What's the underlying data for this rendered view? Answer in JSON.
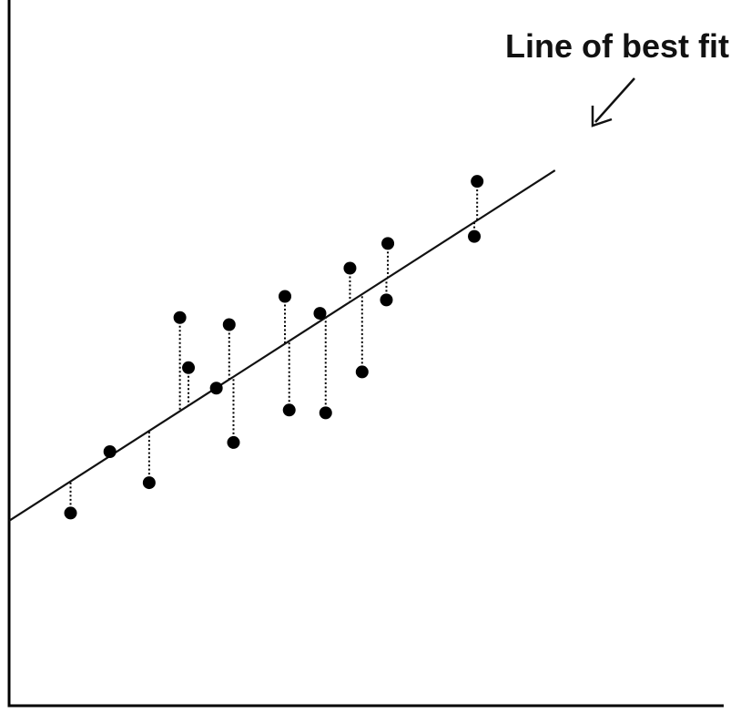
{
  "chart_data": {
    "type": "scatter",
    "title": "",
    "xlabel": "",
    "ylabel": "",
    "xlim": [
      0,
      100
    ],
    "ylim": [
      0,
      100
    ],
    "grid": false,
    "axes_ticks": false,
    "annotation": {
      "text": "Line of best fit",
      "target": "trend-line"
    },
    "trend_line": {
      "slope": 0.65,
      "intercept": 26.2,
      "x_range": [
        0,
        76.4
      ]
    },
    "show_residuals": true,
    "points": [
      {
        "x": 8.6,
        "y": 27.3
      },
      {
        "x": 14.1,
        "y": 36.0
      },
      {
        "x": 19.6,
        "y": 31.6
      },
      {
        "x": 23.9,
        "y": 55.0
      },
      {
        "x": 25.1,
        "y": 47.9
      },
      {
        "x": 29.0,
        "y": 45.0
      },
      {
        "x": 30.8,
        "y": 54.0
      },
      {
        "x": 31.4,
        "y": 37.3
      },
      {
        "x": 38.6,
        "y": 58.0
      },
      {
        "x": 39.2,
        "y": 41.9
      },
      {
        "x": 43.5,
        "y": 55.6
      },
      {
        "x": 44.3,
        "y": 41.5
      },
      {
        "x": 47.7,
        "y": 62.0
      },
      {
        "x": 49.4,
        "y": 47.3
      },
      {
        "x": 53.0,
        "y": 65.5
      },
      {
        "x": 52.8,
        "y": 57.5
      },
      {
        "x": 65.5,
        "y": 74.3
      },
      {
        "x": 65.1,
        "y": 66.5
      }
    ],
    "colors": {
      "points": "#000000",
      "line": "#111111",
      "axes": "#000000",
      "residuals": "#000000"
    }
  }
}
